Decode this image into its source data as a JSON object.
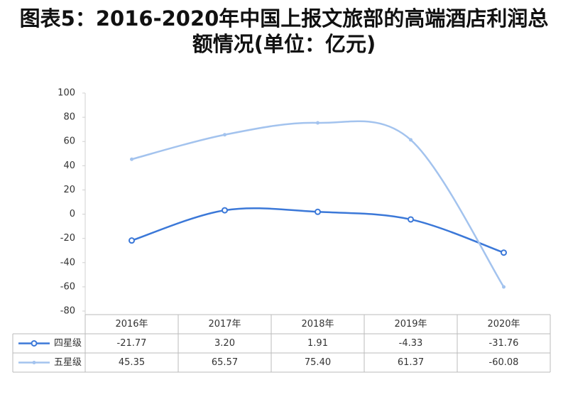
{
  "chart_data": {
    "type": "line",
    "title": "图表5：2016-2020年中国上报文旅部的高端酒店利润总额情况(单位：亿元)",
    "categories": [
      "2016年",
      "2017年",
      "2018年",
      "2019年",
      "2020年"
    ],
    "series": [
      {
        "name": "四星级",
        "color": "#3b78d8",
        "marker": "circle",
        "values": [
          -21.77,
          3.2,
          1.91,
          -4.33,
          -31.76
        ],
        "value_labels": [
          "-21.77",
          "3.20",
          "1.91",
          "-4.33",
          "-31.76"
        ]
      },
      {
        "name": "五星级",
        "color": "#a3c3ee",
        "marker": "dot",
        "values": [
          45.35,
          65.57,
          75.4,
          61.37,
          -60.08
        ],
        "value_labels": [
          "45.35",
          "65.57",
          "75.40",
          "61.37",
          "-60.08"
        ]
      }
    ],
    "ylim": [
      -80,
      100
    ],
    "yticks": [
      -80,
      -60,
      -40,
      -20,
      0,
      20,
      40,
      60,
      80,
      100
    ],
    "grid": false,
    "smooth": true,
    "data_table": true
  }
}
